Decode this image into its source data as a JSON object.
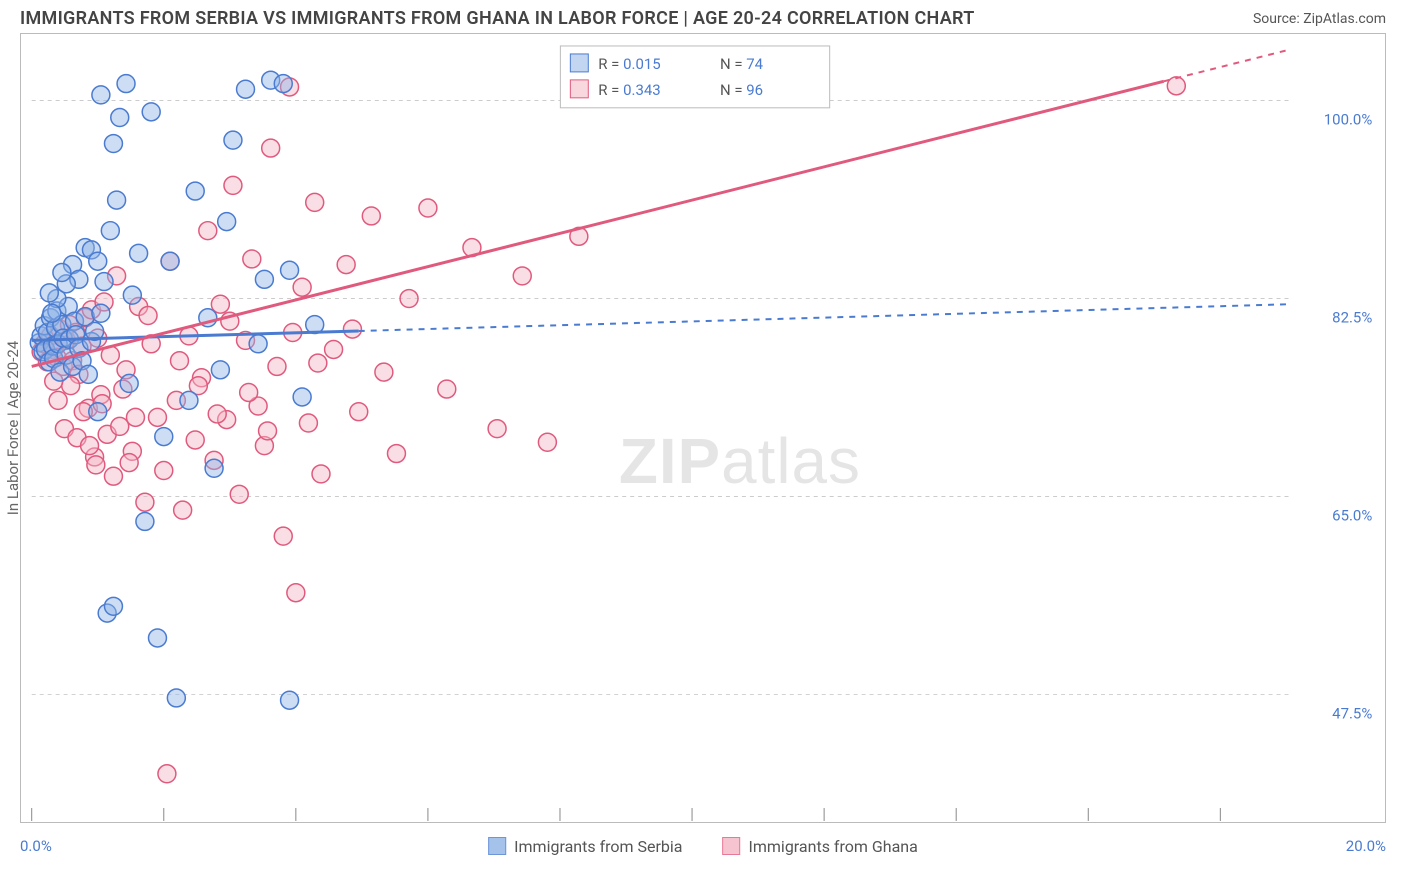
{
  "title": "IMMIGRANTS FROM SERBIA VS IMMIGRANTS FROM GHANA IN LABOR FORCE | AGE 20-24 CORRELATION CHART",
  "source": "Source: ZipAtlas.com",
  "ylabel": "In Labor Force | Age 20-24",
  "watermark_a": "ZIP",
  "watermark_b": "atlas",
  "chart": {
    "type": "scatter-correlation",
    "background_color": "#ffffff",
    "grid_color": "#cccccc",
    "border_color": "#bbbbbb",
    "label_color": "#666666",
    "value_color": "#4a7bd0",
    "xlim": [
      0.0,
      20.0
    ],
    "ylim": [
      38.0,
      105.0
    ],
    "x_ticks": [
      0.0,
      2.1,
      4.2,
      6.3,
      8.4,
      10.5,
      12.6,
      14.7,
      16.8,
      18.9
    ],
    "y_gridlines": [
      47.5,
      65.0,
      82.5,
      100.0
    ],
    "x_tick_labels": {
      "min": "0.0%",
      "max": "20.0%"
    },
    "y_tick_labels": [
      "47.5%",
      "65.0%",
      "82.5%",
      "100.0%"
    ],
    "series_a": {
      "name": "Immigrants from Serbia",
      "color_fill": "#8fb3e6",
      "color_stroke": "#4a7bd0",
      "marker_radius": 9,
      "r_value": "0.015",
      "n_value": "74",
      "trend_solid_x": [
        0.0,
        5.2
      ],
      "trend_dash_x": [
        5.2,
        20.0
      ],
      "trend_y": [
        78.8,
        82.0
      ],
      "points": [
        [
          0.12,
          78.6
        ],
        [
          0.15,
          79.2
        ],
        [
          0.18,
          77.8
        ],
        [
          0.2,
          80.1
        ],
        [
          0.22,
          78.0
        ],
        [
          0.25,
          79.5
        ],
        [
          0.28,
          76.9
        ],
        [
          0.3,
          80.8
        ],
        [
          0.33,
          78.3
        ],
        [
          0.35,
          77.2
        ],
        [
          0.38,
          79.9
        ],
        [
          0.4,
          81.4
        ],
        [
          0.42,
          78.5
        ],
        [
          0.45,
          76.0
        ],
        [
          0.48,
          80.2
        ],
        [
          0.5,
          79.0
        ],
        [
          0.55,
          77.5
        ],
        [
          0.58,
          81.8
        ],
        [
          0.6,
          78.9
        ],
        [
          0.65,
          76.5
        ],
        [
          0.68,
          80.5
        ],
        [
          0.7,
          79.3
        ],
        [
          0.75,
          78.1
        ],
        [
          0.8,
          77.0
        ],
        [
          0.85,
          80.9
        ],
        [
          0.9,
          75.8
        ],
        [
          0.95,
          78.7
        ],
        [
          1.0,
          79.6
        ],
        [
          1.05,
          72.5
        ],
        [
          1.1,
          81.2
        ],
        [
          1.15,
          84.0
        ],
        [
          1.2,
          54.7
        ],
        [
          1.25,
          88.5
        ],
        [
          1.3,
          55.3
        ],
        [
          1.35,
          91.2
        ],
        [
          1.4,
          98.5
        ],
        [
          1.5,
          101.5
        ],
        [
          1.55,
          75.0
        ],
        [
          1.6,
          82.8
        ],
        [
          1.7,
          86.5
        ],
        [
          1.8,
          62.8
        ],
        [
          1.9,
          99.0
        ],
        [
          2.0,
          52.5
        ],
        [
          2.1,
          70.3
        ],
        [
          2.2,
          85.8
        ],
        [
          2.3,
          47.2
        ],
        [
          4.1,
          47.0
        ],
        [
          2.5,
          73.5
        ],
        [
          2.6,
          92.0
        ],
        [
          2.8,
          80.8
        ],
        [
          2.9,
          67.5
        ],
        [
          3.0,
          76.2
        ],
        [
          3.1,
          89.3
        ],
        [
          3.2,
          96.5
        ],
        [
          3.4,
          101.0
        ],
        [
          3.6,
          78.5
        ],
        [
          3.7,
          84.2
        ],
        [
          3.8,
          101.8
        ],
        [
          4.0,
          101.5
        ],
        [
          4.1,
          85.0
        ],
        [
          4.3,
          73.8
        ],
        [
          4.5,
          80.2
        ],
        [
          0.65,
          85.5
        ],
        [
          0.75,
          84.2
        ],
        [
          0.85,
          87.0
        ],
        [
          0.4,
          82.5
        ],
        [
          0.55,
          83.8
        ],
        [
          0.95,
          86.8
        ],
        [
          1.1,
          100.5
        ],
        [
          1.3,
          96.2
        ],
        [
          1.05,
          85.8
        ],
        [
          0.32,
          81.2
        ],
        [
          0.28,
          83.0
        ],
        [
          0.48,
          84.8
        ]
      ]
    },
    "series_b": {
      "name": "Immigrants from Ghana",
      "color_fill": "#f4b6c5",
      "color_stroke": "#e05a7d",
      "marker_radius": 9,
      "r_value": "0.343",
      "n_value": "96",
      "trend_solid_x": [
        0.0,
        18.0
      ],
      "trend_dash_x": [
        18.0,
        20.0
      ],
      "trend_y": [
        76.5,
        104.5
      ],
      "points": [
        [
          0.15,
          77.8
        ],
        [
          0.2,
          78.5
        ],
        [
          0.25,
          76.9
        ],
        [
          0.3,
          79.2
        ],
        [
          0.35,
          78.0
        ],
        [
          0.4,
          77.3
        ],
        [
          0.45,
          79.8
        ],
        [
          0.5,
          76.5
        ],
        [
          0.55,
          78.8
        ],
        [
          0.6,
          80.2
        ],
        [
          0.65,
          77.0
        ],
        [
          0.7,
          79.5
        ],
        [
          0.75,
          75.8
        ],
        [
          0.8,
          78.3
        ],
        [
          0.85,
          80.8
        ],
        [
          0.9,
          72.8
        ],
        [
          0.95,
          81.5
        ],
        [
          1.0,
          68.5
        ],
        [
          1.05,
          79.0
        ],
        [
          1.1,
          74.0
        ],
        [
          1.15,
          82.2
        ],
        [
          1.2,
          70.5
        ],
        [
          1.3,
          66.8
        ],
        [
          1.35,
          84.5
        ],
        [
          1.4,
          71.2
        ],
        [
          1.5,
          76.2
        ],
        [
          1.6,
          69.0
        ],
        [
          1.7,
          81.8
        ],
        [
          1.8,
          64.5
        ],
        [
          1.9,
          78.5
        ],
        [
          2.0,
          72.0
        ],
        [
          2.1,
          67.3
        ],
        [
          2.2,
          85.8
        ],
        [
          2.3,
          73.5
        ],
        [
          2.4,
          63.8
        ],
        [
          2.5,
          79.2
        ],
        [
          2.6,
          70.0
        ],
        [
          2.7,
          75.5
        ],
        [
          2.8,
          88.5
        ],
        [
          2.9,
          68.2
        ],
        [
          3.0,
          82.0
        ],
        [
          3.1,
          71.8
        ],
        [
          3.2,
          92.5
        ],
        [
          3.3,
          65.2
        ],
        [
          3.4,
          78.8
        ],
        [
          3.5,
          86.0
        ],
        [
          3.6,
          73.0
        ],
        [
          3.7,
          69.5
        ],
        [
          3.8,
          95.8
        ],
        [
          3.9,
          76.5
        ],
        [
          4.0,
          61.5
        ],
        [
          4.1,
          101.2
        ],
        [
          4.2,
          56.5
        ],
        [
          4.3,
          83.5
        ],
        [
          4.4,
          71.5
        ],
        [
          4.5,
          91.0
        ],
        [
          4.6,
          67.0
        ],
        [
          4.8,
          78.0
        ],
        [
          5.0,
          85.5
        ],
        [
          5.2,
          72.5
        ],
        [
          5.4,
          89.8
        ],
        [
          5.6,
          76.0
        ],
        [
          5.8,
          68.8
        ],
        [
          6.0,
          82.5
        ],
        [
          6.3,
          90.5
        ],
        [
          6.6,
          74.5
        ],
        [
          7.0,
          87.0
        ],
        [
          7.4,
          71.0
        ],
        [
          7.8,
          84.5
        ],
        [
          8.2,
          69.8
        ],
        [
          8.7,
          88.0
        ],
        [
          18.2,
          101.3
        ],
        [
          2.15,
          40.5
        ],
        [
          1.85,
          81.0
        ],
        [
          0.42,
          73.5
        ],
        [
          0.52,
          71.0
        ],
        [
          0.62,
          74.8
        ],
        [
          0.72,
          70.2
        ],
        [
          0.82,
          72.5
        ],
        [
          0.92,
          69.5
        ],
        [
          1.02,
          67.8
        ],
        [
          1.12,
          73.2
        ],
        [
          3.15,
          80.5
        ],
        [
          3.45,
          74.2
        ],
        [
          3.75,
          70.8
        ],
        [
          2.35,
          77.0
        ],
        [
          2.65,
          74.8
        ],
        [
          2.95,
          72.3
        ],
        [
          1.25,
          77.5
        ],
        [
          1.45,
          74.5
        ],
        [
          1.65,
          72.0
        ],
        [
          0.35,
          75.2
        ],
        [
          4.15,
          79.5
        ],
        [
          4.55,
          76.8
        ],
        [
          5.1,
          79.8
        ],
        [
          1.55,
          68.0
        ]
      ]
    }
  },
  "legend_top": {
    "r_label": "R =",
    "n_label": "N ="
  }
}
